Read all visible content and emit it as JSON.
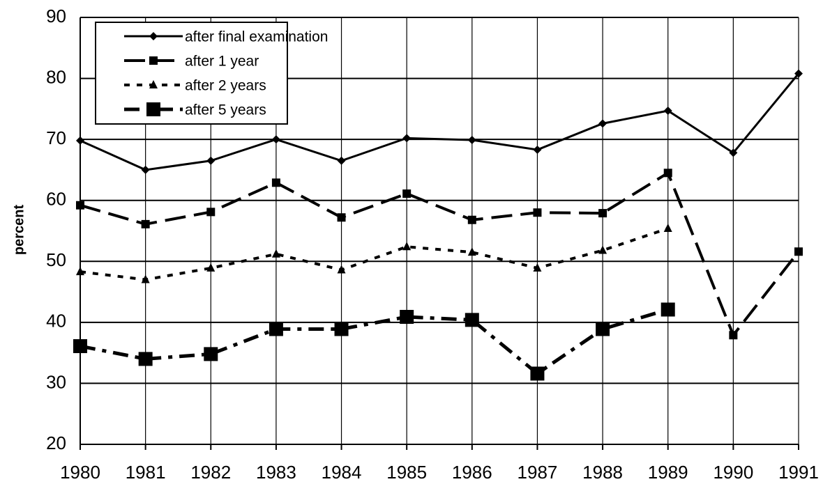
{
  "chart_data": {
    "type": "line",
    "categories": [
      "1980",
      "1981",
      "1982",
      "1983",
      "1984",
      "1985",
      "1986",
      "1987",
      "1988",
      "1989",
      "1990",
      "1991"
    ],
    "y_label": "percent",
    "ylim": [
      20,
      90
    ],
    "yticks": [
      20,
      30,
      40,
      50,
      60,
      70,
      80,
      90
    ],
    "grid": true,
    "legend": "top-left",
    "series": [
      {
        "name": "after final examination",
        "color": "#000000",
        "dash": "solid",
        "marker": "diamond",
        "values": [
          69.8,
          65.0,
          66.5,
          70.0,
          66.5,
          70.2,
          69.9,
          68.3,
          72.6,
          74.7,
          67.8,
          80.8
        ]
      },
      {
        "name": "after 1 year",
        "color": "#000000",
        "dash": "long",
        "marker": "square",
        "values": [
          59.2,
          56.1,
          58.1,
          62.9,
          57.2,
          61.1,
          56.8,
          58.0,
          57.9,
          64.5,
          37.9,
          51.6
        ]
      },
      {
        "name": "after 2 years",
        "color": "#000000",
        "dash": "dotted",
        "marker": "triangle",
        "values": [
          48.3,
          47.0,
          48.9,
          51.2,
          48.6,
          52.4,
          51.5,
          48.9,
          51.8,
          55.4,
          null,
          null
        ]
      },
      {
        "name": "after 5 years",
        "color": "#000000",
        "dash": "dashdot",
        "marker": "bigsquare",
        "values": [
          36.1,
          34.0,
          34.8,
          38.9,
          38.9,
          40.9,
          40.4,
          31.6,
          38.9,
          42.1,
          null,
          null
        ]
      }
    ]
  }
}
